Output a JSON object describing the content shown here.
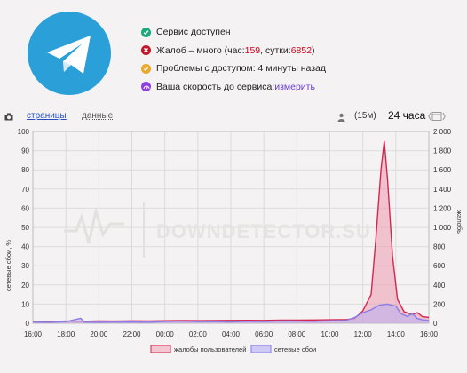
{
  "status": {
    "items": [
      {
        "icon": "check-icon",
        "color": "#1aa97a",
        "text": "Сервис доступен"
      },
      {
        "icon": "cross-icon",
        "color": "#c0182d",
        "text_before": "Жалоб – много (час: ",
        "hour_count": "159",
        "text_mid": ", сутки: ",
        "day_count": "6852",
        "text_after": ")"
      },
      {
        "icon": "clock-icon",
        "color": "#e9a72b",
        "text": "Проблемы с доступом: 4 минуты назад"
      },
      {
        "icon": "speed-icon",
        "color": "#8e3fe0",
        "text": "Ваша скорость до сервиса: ",
        "link": "измерить"
      }
    ]
  },
  "toolbar": {
    "tab_pages": "страницы",
    "tab_data": "данные",
    "interval": "(15м)",
    "range": "24 часа"
  },
  "watermark": "DOWNDETECTOR.SU",
  "colors": {
    "complaints": "#d6264f",
    "outages": "#8a7de6",
    "logo": "#2a9fd8"
  },
  "chart_data": {
    "type": "area",
    "x_ticks": [
      "16:00",
      "18:00",
      "20:00",
      "22:00",
      "00:00",
      "02:00",
      "04:00",
      "06:00",
      "08:00",
      "10:00",
      "12:00",
      "14:00",
      "16:00"
    ],
    "y_left": {
      "label": "сетевые сбои, %",
      "ticks": [
        "0",
        "10",
        "20",
        "30",
        "40",
        "50",
        "60",
        "70",
        "80",
        "90",
        "100"
      ],
      "range": [
        0,
        100
      ]
    },
    "y_right": {
      "label": "жалобы",
      "ticks": [
        "0",
        "200",
        "400",
        "600",
        "800",
        "1 000",
        "1 200",
        "1 400",
        "1 600",
        "1 800",
        "2 000"
      ],
      "range": [
        0,
        2000
      ]
    },
    "legend": [
      "жалобы пользователей",
      "сетевые сбои"
    ],
    "series": [
      {
        "name": "жалобы пользователей",
        "axis": "right",
        "points": [
          [
            0,
            18
          ],
          [
            1,
            17
          ],
          [
            2,
            22
          ],
          [
            3,
            20
          ],
          [
            4,
            24
          ],
          [
            5,
            22
          ],
          [
            6,
            25
          ],
          [
            7,
            24
          ],
          [
            8,
            26
          ],
          [
            9,
            28
          ],
          [
            10,
            27
          ],
          [
            11,
            28
          ],
          [
            12,
            30
          ],
          [
            13,
            31
          ],
          [
            14,
            30
          ],
          [
            15,
            33
          ],
          [
            16,
            32
          ],
          [
            17,
            34
          ],
          [
            18,
            36
          ],
          [
            19,
            38
          ],
          [
            19.5,
            50
          ],
          [
            20,
            130
          ],
          [
            20.5,
            300
          ],
          [
            20.8,
            900
          ],
          [
            21.1,
            1600
          ],
          [
            21.3,
            1900
          ],
          [
            21.5,
            1500
          ],
          [
            21.8,
            700
          ],
          [
            22.1,
            250
          ],
          [
            22.5,
            120
          ],
          [
            23,
            90
          ],
          [
            23.3,
            110
          ],
          [
            23.6,
            70
          ],
          [
            24,
            60
          ]
        ]
      },
      {
        "name": "сетевые сбои",
        "axis": "left",
        "points": [
          [
            0,
            0.6
          ],
          [
            1,
            0.5
          ],
          [
            2,
            0.8
          ],
          [
            2.9,
            2.6
          ],
          [
            3.1,
            0.6
          ],
          [
            4,
            0.5
          ],
          [
            5,
            0.6
          ],
          [
            6,
            0.7
          ],
          [
            7,
            0.5
          ],
          [
            8,
            0.9
          ],
          [
            9,
            1.1
          ],
          [
            10,
            0.8
          ],
          [
            11,
            0.9
          ],
          [
            12,
            0.7
          ],
          [
            13,
            1.0
          ],
          [
            14,
            0.9
          ],
          [
            15,
            1.2
          ],
          [
            16,
            1.1
          ],
          [
            17,
            1.0
          ],
          [
            18,
            1.3
          ],
          [
            19,
            1.5
          ],
          [
            19.5,
            3.0
          ],
          [
            20,
            5.5
          ],
          [
            20.5,
            7.0
          ],
          [
            21,
            9.5
          ],
          [
            21.5,
            10.0
          ],
          [
            22,
            9.0
          ],
          [
            22.3,
            5.0
          ],
          [
            22.7,
            3.5
          ],
          [
            23,
            5.0
          ],
          [
            23.3,
            2.5
          ],
          [
            23.6,
            1.8
          ],
          [
            24,
            1.5
          ]
        ]
      }
    ]
  }
}
